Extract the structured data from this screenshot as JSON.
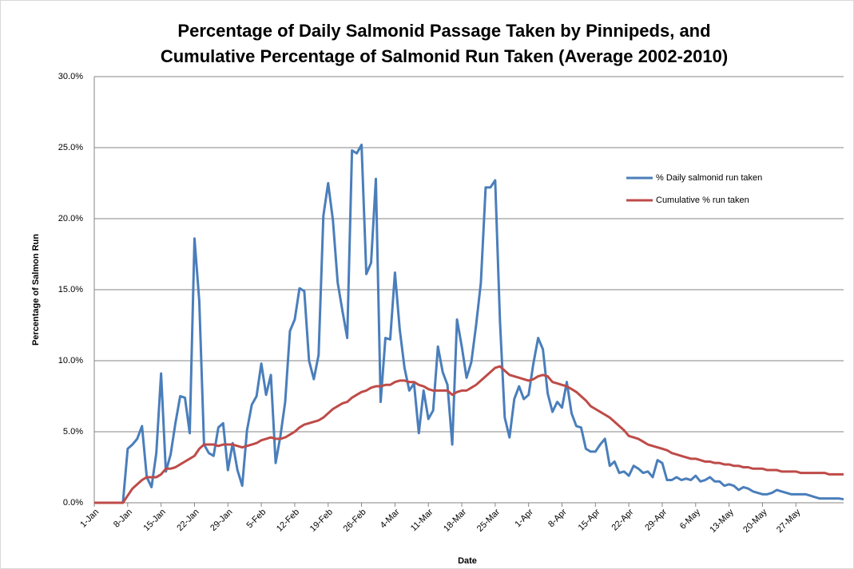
{
  "chart_data": {
    "type": "line",
    "title": "Percentage of Daily Salmonid Passage Taken by Pinnipeds, and",
    "subtitle": "Cumulative Percentage of Salmonid Run Taken (Average 2002-2010)",
    "x_label": "Date",
    "y_label": "Percentage of Salmon Run",
    "categories": [
      "1-Jan",
      null,
      null,
      null,
      null,
      null,
      null,
      "8-Jan",
      null,
      null,
      null,
      null,
      null,
      null,
      "15-Jan",
      null,
      null,
      null,
      null,
      null,
      null,
      "22-Jan",
      null,
      null,
      null,
      null,
      null,
      null,
      "29-Jan",
      null,
      null,
      null,
      null,
      null,
      null,
      "5-Feb",
      null,
      null,
      null,
      null,
      null,
      null,
      "12-Feb",
      null,
      null,
      null,
      null,
      null,
      null,
      "19-Feb",
      null,
      null,
      null,
      null,
      null,
      null,
      "26-Feb",
      null,
      null,
      null,
      null,
      null,
      null,
      "4-Mar",
      null,
      null,
      null,
      null,
      null,
      null,
      "11-Mar",
      null,
      null,
      null,
      null,
      null,
      null,
      "18-Mar",
      null,
      null,
      null,
      null,
      null,
      null,
      "25-Mar",
      null,
      null,
      null,
      null,
      null,
      null,
      "1-Apr",
      null,
      null,
      null,
      null,
      null,
      null,
      "8-Apr",
      null,
      null,
      null,
      null,
      null,
      null,
      "15-Apr",
      null,
      null,
      null,
      null,
      null,
      null,
      "22-Apr",
      null,
      null,
      null,
      null,
      null,
      null,
      "29-Apr",
      null,
      null,
      null,
      null,
      null,
      null,
      "6-May",
      null,
      null,
      null,
      null,
      null,
      null,
      "13-May",
      null,
      null,
      null,
      null,
      null,
      null,
      "20-May",
      null,
      null,
      null,
      null,
      null,
      null,
      "27-May",
      null,
      null,
      null,
      null,
      null,
      null,
      null,
      null,
      null,
      null
    ],
    "series": [
      {
        "name": "% Daily salmonid run taken",
        "color": "#4a7ebb",
        "values": [
          0,
          0,
          0,
          0,
          0,
          0,
          0,
          3.8,
          4.1,
          4.5,
          5.4,
          1.8,
          1.1,
          3.5,
          9.1,
          2.2,
          3.4,
          5.6,
          7.5,
          7.4,
          4.9,
          18.6,
          14.2,
          4.1,
          3.5,
          3.3,
          5.3,
          5.6,
          2.3,
          4.2,
          2.3,
          1.2,
          5.1,
          6.9,
          7.5,
          9.8,
          7.6,
          9.0,
          2.8,
          4.7,
          7.1,
          12.1,
          12.9,
          15.1,
          14.9,
          10.0,
          8.7,
          10.4,
          20.2,
          22.5,
          19.9,
          15.5,
          13.5,
          11.6,
          24.8,
          24.6,
          25.2,
          16.1,
          16.9,
          22.8,
          7.1,
          11.6,
          11.5,
          16.2,
          12.2,
          9.5,
          7.9,
          8.4,
          4.9,
          7.9,
          5.9,
          6.5,
          11.0,
          9.2,
          8.3,
          4.1,
          12.9,
          11.0,
          8.8,
          9.9,
          12.5,
          15.5,
          22.2,
          22.2,
          22.7,
          12.8,
          6.0,
          4.6,
          7.3,
          8.2,
          7.3,
          7.6,
          9.8,
          11.6,
          10.8,
          7.7,
          6.4,
          7.1,
          6.7,
          8.5,
          6.3,
          5.4,
          5.3,
          3.8,
          3.6,
          3.6,
          4.1,
          4.5,
          2.6,
          2.9,
          2.1,
          2.2,
          1.9,
          2.6,
          2.4,
          2.1,
          2.2,
          1.8,
          3.0,
          2.8,
          1.6,
          1.6,
          1.8,
          1.6,
          1.7,
          1.6,
          1.9,
          1.5,
          1.6,
          1.8,
          1.5,
          1.5,
          1.2,
          1.3,
          1.2,
          0.9,
          1.1,
          1.0,
          0.8,
          0.7,
          0.6,
          0.6,
          0.7,
          0.9,
          0.8,
          0.7,
          0.6,
          0.6,
          0.6,
          0.6,
          0.5,
          0.4,
          0.3,
          0.3,
          0.3,
          0.3,
          0.3,
          0.25
        ]
      },
      {
        "name": "Cumulative % run taken",
        "color": "#be4b48",
        "values": [
          0,
          0,
          0,
          0,
          0,
          0,
          0,
          0.5,
          1.0,
          1.3,
          1.6,
          1.8,
          1.8,
          1.8,
          2.0,
          2.4,
          2.4,
          2.5,
          2.7,
          2.9,
          3.1,
          3.3,
          3.8,
          4.1,
          4.1,
          4.1,
          4.0,
          4.1,
          4.1,
          4.1,
          4.0,
          3.9,
          4.0,
          4.1,
          4.2,
          4.4,
          4.5,
          4.6,
          4.5,
          4.5,
          4.6,
          4.8,
          5.0,
          5.3,
          5.5,
          5.6,
          5.7,
          5.8,
          6.0,
          6.3,
          6.6,
          6.8,
          7.0,
          7.1,
          7.4,
          7.6,
          7.8,
          7.9,
          8.1,
          8.2,
          8.2,
          8.3,
          8.3,
          8.5,
          8.6,
          8.6,
          8.5,
          8.5,
          8.3,
          8.2,
          8.0,
          7.9,
          7.9,
          7.9,
          7.9,
          7.6,
          7.8,
          7.9,
          7.9,
          8.1,
          8.3,
          8.6,
          8.9,
          9.2,
          9.5,
          9.6,
          9.3,
          9.0,
          8.9,
          8.8,
          8.7,
          8.6,
          8.7,
          8.9,
          9.0,
          8.9,
          8.5,
          8.4,
          8.3,
          8.2,
          8.0,
          7.8,
          7.5,
          7.2,
          6.8,
          6.6,
          6.4,
          6.2,
          6.0,
          5.7,
          5.4,
          5.1,
          4.7,
          4.6,
          4.5,
          4.3,
          4.1,
          4.0,
          3.9,
          3.8,
          3.7,
          3.5,
          3.4,
          3.3,
          3.2,
          3.1,
          3.1,
          3.0,
          2.9,
          2.9,
          2.8,
          2.8,
          2.7,
          2.7,
          2.6,
          2.6,
          2.5,
          2.5,
          2.4,
          2.4,
          2.4,
          2.3,
          2.3,
          2.3,
          2.2,
          2.2,
          2.2,
          2.2,
          2.1,
          2.1,
          2.1,
          2.1,
          2.1,
          2.1,
          2.0,
          2.0,
          2.0,
          2.0
        ]
      }
    ],
    "ylim": [
      0,
      30
    ],
    "yticks": [
      {
        "value": 0,
        "label": "0.0%"
      },
      {
        "value": 5,
        "label": "5.0%"
      },
      {
        "value": 10,
        "label": "10.0%"
      },
      {
        "value": 15,
        "label": "15.0%"
      },
      {
        "value": 20,
        "label": "20.0%"
      },
      {
        "value": 25,
        "label": "25.0%"
      },
      {
        "value": 30,
        "label": "30.0%"
      }
    ],
    "grid": true,
    "legend": "right"
  }
}
